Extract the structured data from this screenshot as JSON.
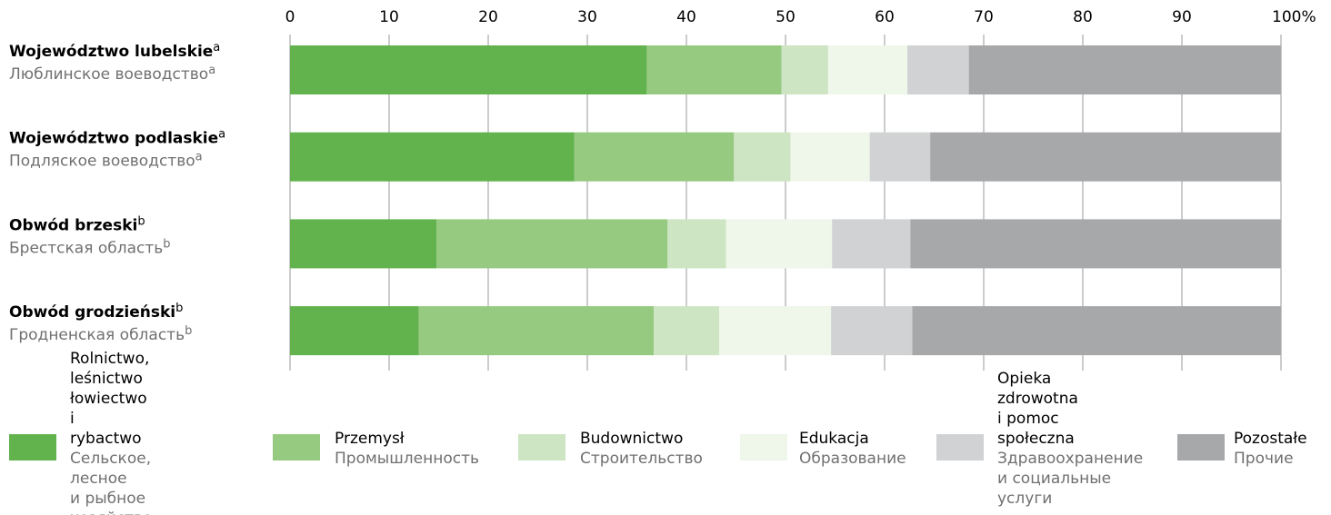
{
  "chart_data": {
    "type": "stacked-bar-horizontal",
    "categories": [
      "Województwo lubelskie",
      "Województwo podlaskie",
      "Obwód brzeski",
      "Obwód grodzieński"
    ],
    "categories_ru": [
      "Люблинское воеводство",
      "Подляское воеводство",
      "Брестская область",
      "Гродненская область"
    ],
    "category_notes": [
      "a",
      "a",
      "b",
      "b"
    ],
    "series": [
      {
        "name": "Rolnictwo, leśnictwo\nłowiectwo i rybactwo",
        "name_ru": "Сельское, лесное\nи рыбное хозяйство",
        "color": "#62b34d",
        "values": [
          36.0,
          28.7,
          14.8,
          13.0
        ]
      },
      {
        "name": "Przemysł",
        "name_ru": "Промышленность",
        "color": "#96ca80",
        "values": [
          13.6,
          16.1,
          23.3,
          23.7
        ]
      },
      {
        "name": "Budownictwo",
        "name_ru": "Строительство",
        "color": "#cde5c2",
        "values": [
          4.7,
          5.7,
          5.9,
          6.6
        ]
      },
      {
        "name": "Edukacja",
        "name_ru": "Образование",
        "color": "#eff6ea",
        "values": [
          8.0,
          8.0,
          10.7,
          11.3
        ]
      },
      {
        "name": "Opieka zdrowotna\ni pomoc społeczna",
        "name_ru": "Здравоохранение\nи социальные\nуслуги",
        "color": "#d1d2d3",
        "values": [
          6.2,
          6.1,
          7.9,
          8.2
        ]
      },
      {
        "name": "Pozostałe",
        "name_ru": "Прочие",
        "color": "#a7a8aa",
        "values": [
          31.5,
          35.4,
          37.4,
          37.2
        ]
      }
    ],
    "xlim": [
      0,
      100
    ],
    "xticks": [
      0,
      10,
      20,
      30,
      40,
      50,
      60,
      70,
      80,
      90,
      {
        "value": 100,
        "label": "100%"
      }
    ],
    "grid": true,
    "legend": "bottom"
  }
}
